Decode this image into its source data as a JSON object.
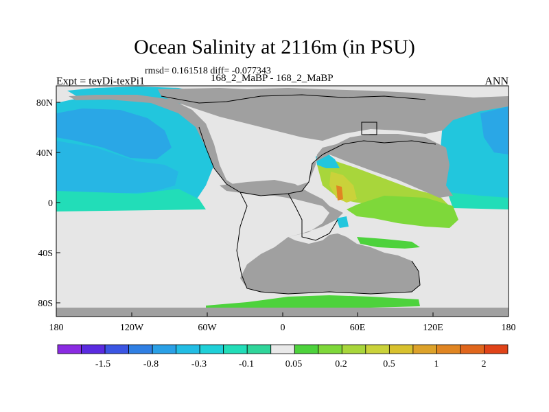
{
  "title": "Ocean Salinity at 2116m (in PSU)",
  "stats": "rmsd= 0.161518 diff= -0.077343",
  "left_label": "Expt = teyDi-texPi1",
  "center_label": "168_2_MaBP - 168_2_MaBP",
  "right_label": "ANN",
  "lat_ticks": [
    "80N",
    "40N",
    "0",
    "40S",
    "80S"
  ],
  "lon_ticks": [
    "180",
    "120W",
    "60W",
    "0",
    "60E",
    "120E",
    "180"
  ],
  "colorbar": {
    "colors": [
      "#8a2be2",
      "#5a2be0",
      "#3b55e3",
      "#2f7fe3",
      "#2aa0e6",
      "#22bde4",
      "#1fd0d8",
      "#22ddb8",
      "#2fd59a",
      "#e9e9e9",
      "#4dd23c",
      "#7ed83a",
      "#a8d63b",
      "#cad23a",
      "#d8c12e",
      "#dda22a",
      "#e08522",
      "#e0661c",
      "#e04318"
    ],
    "labels": [
      "-1.5",
      "-0.8",
      "-0.3",
      "-0.1",
      "0.05",
      "0.2",
      "0.5",
      "1",
      "2"
    ]
  },
  "legend_colors": {
    "land": "#a0a0a0",
    "missing": "#e6e6e6",
    "outline": "#000000"
  }
}
